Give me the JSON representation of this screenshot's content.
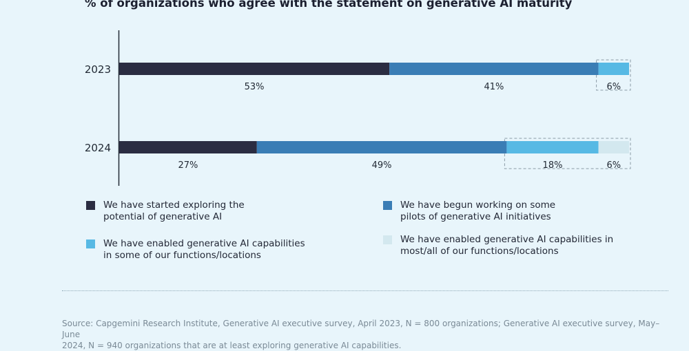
{
  "title": "% of organizations who agree with the statement on generative AI maturity",
  "chart_data": {
    "type": "bar",
    "orientation": "horizontal",
    "stacked": true,
    "categories": [
      "2023",
      "2024"
    ],
    "series": [
      {
        "name": "We have started exploring the potential of generative AI",
        "values": [
          53,
          27
        ],
        "labels": [
          "53%",
          "27%"
        ],
        "color": "#2b2d42"
      },
      {
        "name": "We have begun working on some pilots of generative AI initiatives",
        "values": [
          41,
          49
        ],
        "labels": [
          "41%",
          "49%"
        ],
        "color": "#3a7db5"
      },
      {
        "name": "We have enabled generative AI capabilities in some of our functions/locations",
        "values": [
          6,
          18
        ],
        "labels": [
          "6%",
          "18%"
        ],
        "color": "#57b9e4"
      },
      {
        "name": "We have enabled generative AI capabilities in most/all of our functions/locations",
        "values": [
          0,
          6
        ],
        "labels": [
          "",
          "6%"
        ],
        "color": "#d3e8ef"
      }
    ],
    "xlim": [
      0,
      100
    ],
    "grid": false,
    "legend": "bottom",
    "highlight_boxes": [
      {
        "category": "2023",
        "from": 94,
        "to": 100
      },
      {
        "category": "2024",
        "from": 76,
        "to": 100
      }
    ]
  },
  "legend": [
    {
      "line1": "We have started exploring the",
      "line2": "potential of generative AI",
      "color": "#2b2d42"
    },
    {
      "line1": "We have begun working on some",
      "line2": "pilots of generative AI initiatives",
      "color": "#3a7db5"
    },
    {
      "line1": "We have enabled generative AI capabilities",
      "line2": "in some of our functions/locations",
      "color": "#57b9e4"
    },
    {
      "line1": "We have enabled generative AI capabilities in",
      "line2": "most/all of our functions/locations",
      "color": "#d3e8ef"
    }
  ],
  "source": {
    "line1": "Source: Capgemini Research Institute, Generative AI executive survey, April 2023, N = 800 organizations; Generative AI executive survey, May–June",
    "line2": "2024, N = 940 organizations that are at least exploring generative AI capabilities."
  }
}
